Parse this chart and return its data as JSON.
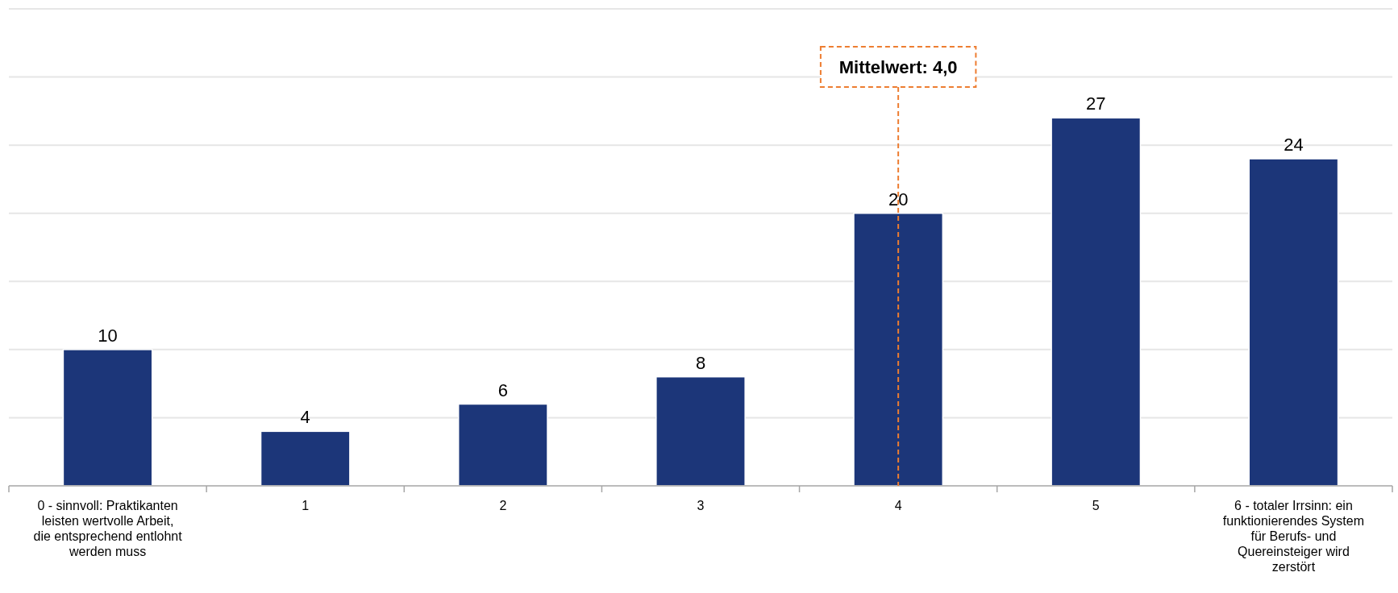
{
  "chart_data": {
    "type": "bar",
    "categories": [
      "0 - sinnvoll: Praktikanten leisten wertvolle Arbeit, die entsprechend entlohnt werden muss",
      "1",
      "2",
      "3",
      "4",
      "5",
      "6 - totaler Irrsinn: ein funktionierendes System für Berufs- und Quereinsteiger wird zerstört"
    ],
    "values": [
      10,
      4,
      6,
      8,
      20,
      27,
      24
    ],
    "color": "#1c3679",
    "ylim": [
      0,
      35
    ],
    "yticks": [
      {
        "value": 0,
        "label": null
      },
      {
        "value": 5,
        "label": null
      },
      {
        "value": 10,
        "label": null
      },
      {
        "value": 15,
        "label": null
      },
      {
        "value": 20,
        "label": null
      },
      {
        "value": 25,
        "label": null
      },
      {
        "value": 30,
        "label": null
      },
      {
        "value": 35,
        "label": null
      }
    ],
    "tick_labels": "x",
    "grid": "y",
    "data_labels": true,
    "ref_lines": [
      {
        "axis": "x",
        "value": "4",
        "label": "Mittelwert: 4,0",
        "color": "#ed7d31",
        "line_style": "dashed"
      }
    ]
  }
}
